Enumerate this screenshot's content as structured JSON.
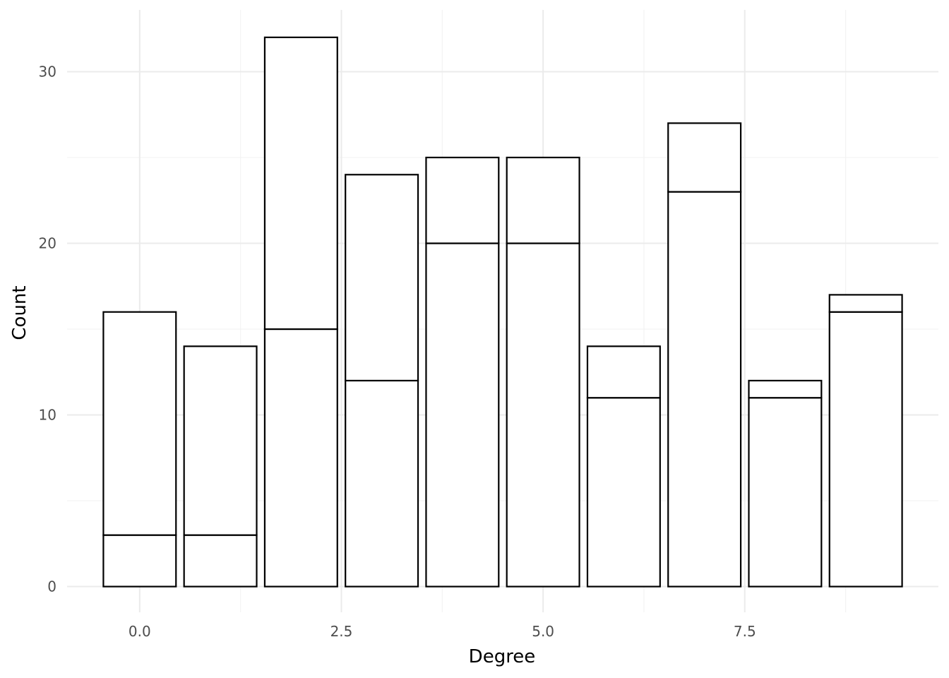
{
  "chart_data": {
    "type": "bar",
    "stacked": true,
    "xlabel": "Degree",
    "ylabel": "Count",
    "xlim": [
      -0.9,
      9.9
    ],
    "ylim": [
      -1.5,
      33.6
    ],
    "x_ticks": [
      0.0,
      2.5,
      5.0,
      7.5
    ],
    "x_tick_labels": [
      "0.0",
      "2.5",
      "5.0",
      "7.5"
    ],
    "y_ticks": [
      0,
      10,
      20,
      30
    ],
    "y_tick_labels": [
      "0",
      "10",
      "20",
      "30"
    ],
    "grid": true,
    "legend": "none",
    "bar_width": 0.9,
    "x": [
      0,
      1,
      2,
      3,
      4,
      5,
      6,
      7,
      8,
      9
    ],
    "series": [
      {
        "values": [
          3,
          3,
          15,
          12,
          20,
          20,
          11,
          23,
          11,
          16
        ]
      },
      {
        "values": [
          13,
          11,
          17,
          12,
          5,
          5,
          3,
          4,
          1,
          1
        ]
      }
    ],
    "totals": [
      16,
      14,
      32,
      24,
      25,
      25,
      14,
      27,
      12,
      17
    ]
  }
}
